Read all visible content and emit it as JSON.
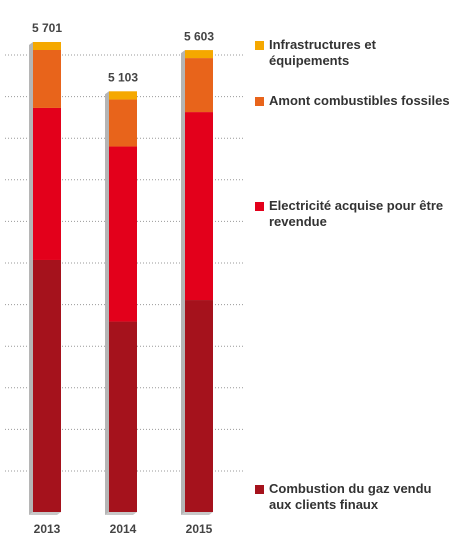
{
  "chart_data": {
    "type": "stacked_bar",
    "categories": [
      "2013",
      "2014",
      "2015"
    ],
    "series": [
      {
        "name": "Combustion du gaz vendu aux clients finaux",
        "color": "#a5121c",
        "values": [
          3057,
          2310,
          2571
        ]
      },
      {
        "name": "Electricité acquise pour être revendue",
        "color": "#e3001b",
        "values": [
          1844,
          2123,
          2280
        ]
      },
      {
        "name": "Amont combustibles fossiles",
        "color": "#e8641b",
        "values": [
          703,
          570,
          655
        ]
      },
      {
        "name": "Infrastructures et équipements",
        "color": "#f5a800",
        "values": [
          97,
          100,
          97
        ]
      }
    ],
    "totals": [
      5701,
      5103,
      5603
    ],
    "total_labels": [
      "5 701",
      "5 103",
      "5 603"
    ]
  }
}
